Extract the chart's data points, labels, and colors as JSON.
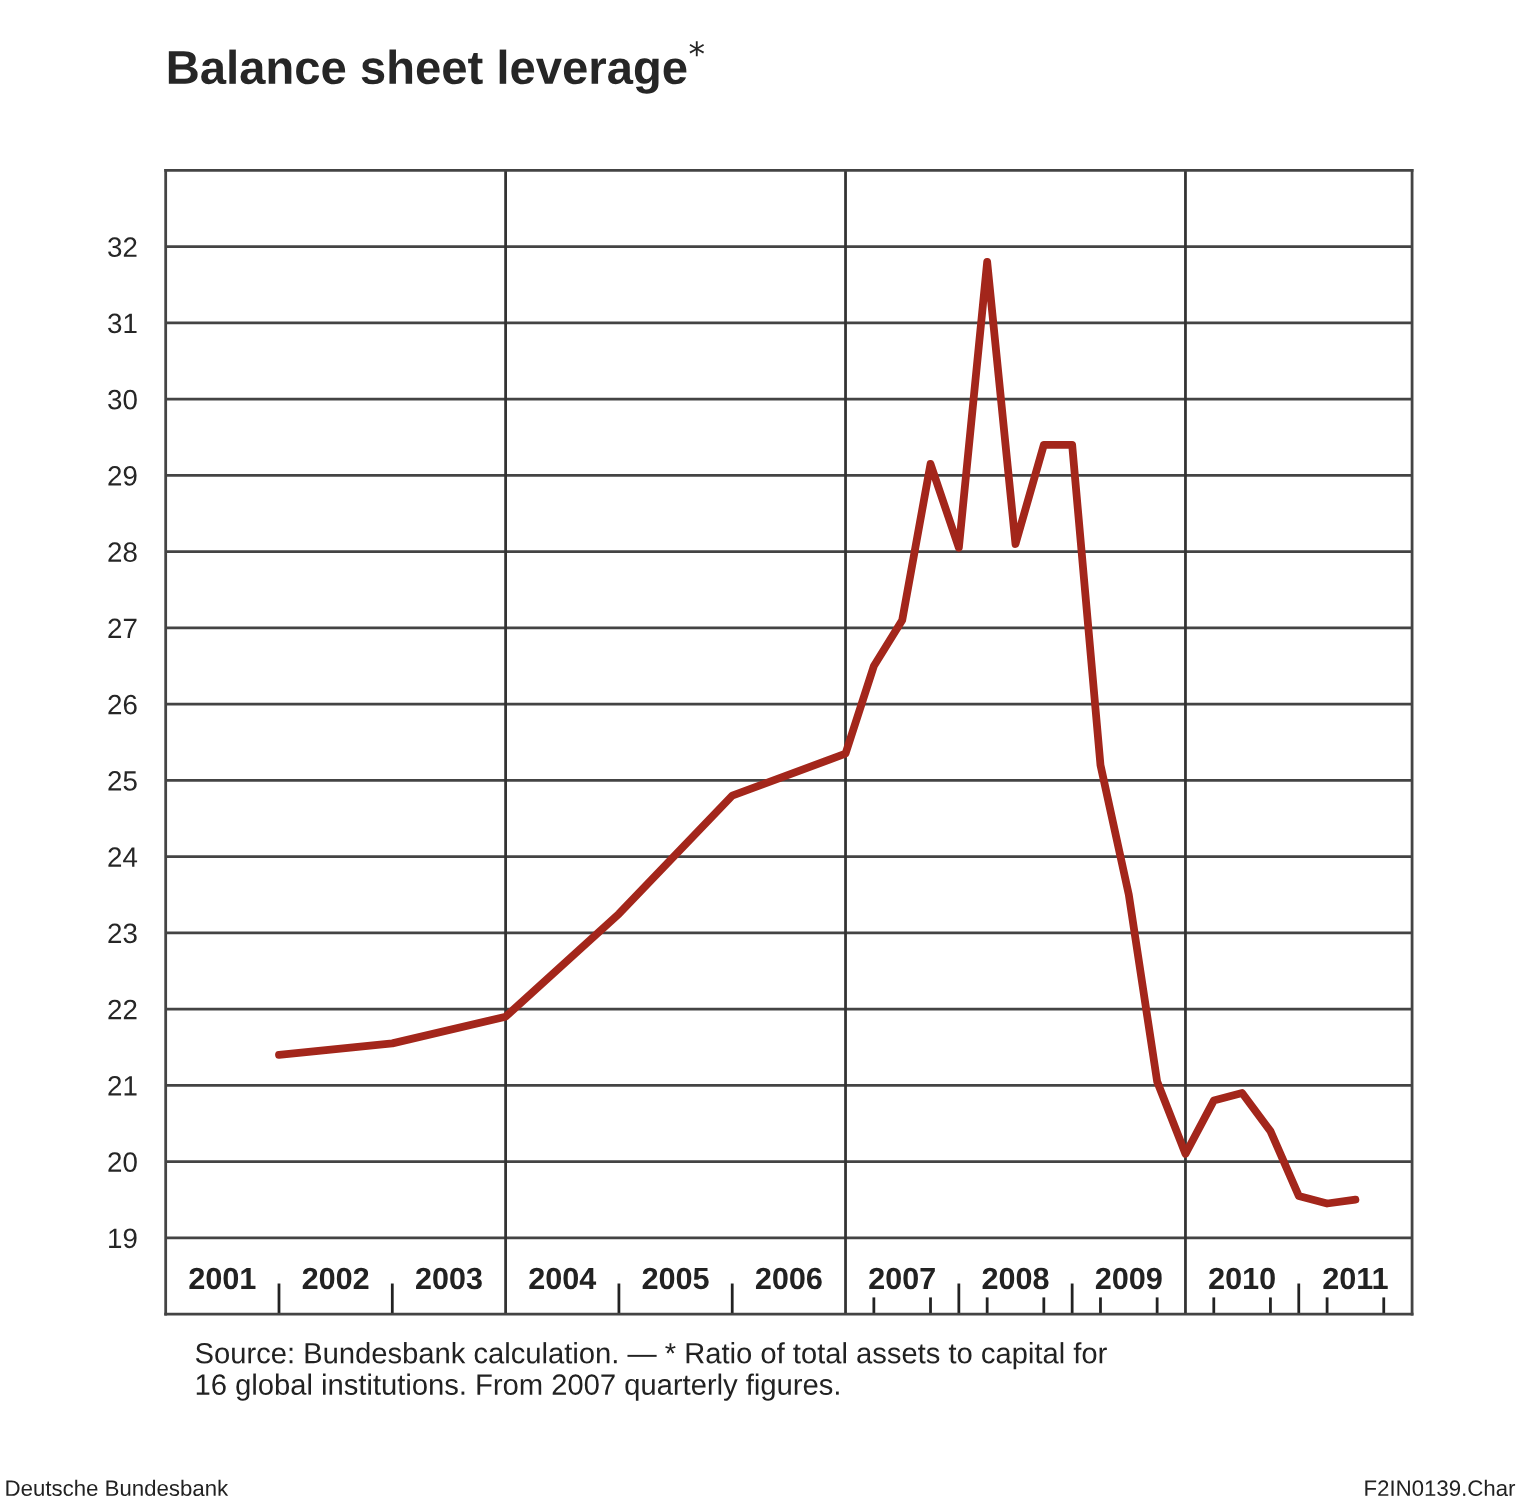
{
  "chart_data": {
    "type": "line",
    "title": "Balance sheet leverage$^{*}$",
    "series": [
      {
        "color": "#a3261b",
        "x": [
          2002,
          2003,
          2004,
          2005,
          2006,
          2007,
          2007.25,
          2007.5,
          2007.75,
          2008,
          2008.25,
          2008.5,
          2008.75,
          2009,
          2009.25,
          2009.5,
          2009.75,
          2010,
          2010.25,
          2010.5,
          2010.75,
          2011,
          2011.25,
          2011.5
        ],
        "values": [
          21.4,
          21.55,
          21.9,
          23.25,
          24.8,
          25.35,
          26.5,
          27.1,
          29.15,
          28.05,
          31.8,
          28.1,
          29.4,
          29.4,
          25.2,
          23.5,
          21.05,
          20.1,
          20.8,
          20.9,
          20.4,
          19.55,
          19.45,
          19.5
        ]
      }
    ],
    "xlim": [
      2001,
      2012
    ],
    "ylim": [
      18,
      33
    ],
    "xticks": [
      {
        "value": 2001.5,
        "label": "2001"
      },
      {
        "value": 2002,
        "label": null
      },
      {
        "value": 2002.5,
        "label": "2002"
      },
      {
        "value": 2003,
        "label": null
      },
      {
        "value": 2003.5,
        "label": "2003"
      },
      {
        "value": 2004,
        "label": null
      },
      {
        "value": 2004.5,
        "label": "2004"
      },
      {
        "value": 2005,
        "label": null
      },
      {
        "value": 2005.5,
        "label": "2005"
      },
      {
        "value": 2006,
        "label": null
      },
      {
        "value": 2006.5,
        "label": "2006"
      },
      {
        "value": 2007,
        "label": null
      },
      {
        "value": 2007.25,
        "label": null
      },
      {
        "value": 2007.5,
        "label": "2007"
      },
      {
        "value": 2007.75,
        "label": null
      },
      {
        "value": 2008,
        "label": null
      },
      {
        "value": 2008.25,
        "label": null
      },
      {
        "value": 2008.5,
        "label": "2008"
      },
      {
        "value": 2008.75,
        "label": null
      },
      {
        "value": 2009,
        "label": null
      },
      {
        "value": 2009.25,
        "label": null
      },
      {
        "value": 2009.5,
        "label": "2009"
      },
      {
        "value": 2009.75,
        "label": null
      },
      {
        "value": 2010,
        "label": null
      },
      {
        "value": 2010.25,
        "label": null
      },
      {
        "value": 2010.5,
        "label": "2010"
      },
      {
        "value": 2010.75,
        "label": null
      },
      {
        "value": 2011,
        "label": null
      },
      {
        "value": 2011.25,
        "label": null
      },
      {
        "value": 2011.5,
        "label": "2011"
      },
      {
        "value": 2011.75,
        "label": null
      }
    ],
    "yticks": [
      19,
      20,
      21,
      22,
      23,
      24,
      25,
      26,
      27,
      28,
      29,
      30,
      31,
      32
    ],
    "grid": "y",
    "ref_lines": [
      {
        "axis": "x",
        "value": 2004,
        "color": "#333333"
      },
      {
        "axis": "x",
        "value": 2007,
        "color": "#333333"
      },
      {
        "axis": "x",
        "value": 2010,
        "color": "#333333"
      }
    ],
    "marker": "none",
    "line_style": "solid",
    "annotations": [
      "Source: Bundesbank calculation. — * Ratio of total assets to capital for\n16 global institutions. From 2007 quarterly figures.",
      "Deutsche Bundesbank",
      "F2IN0139.Char"
    ]
  }
}
